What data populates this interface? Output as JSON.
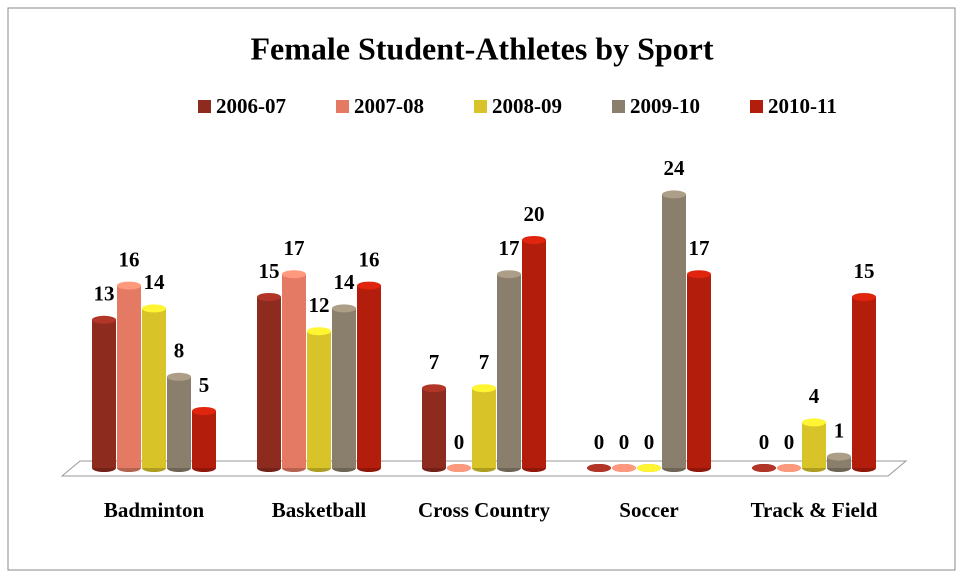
{
  "chart_data": {
    "type": "bar",
    "title": "Female Student-Athletes by Sport",
    "categories": [
      "Badminton",
      "Basketball",
      "Cross Country",
      "Soccer",
      "Track & Field"
    ],
    "series": [
      {
        "name": "2006-07",
        "color": "#8e2b1f",
        "values": [
          13,
          15,
          7,
          0,
          0
        ]
      },
      {
        "name": "2007-08",
        "color": "#e47a64",
        "values": [
          16,
          17,
          0,
          0,
          0
        ]
      },
      {
        "name": "2008-09",
        "color": "#d8c428",
        "values": [
          14,
          12,
          7,
          0,
          4
        ]
      },
      {
        "name": "2009-10",
        "color": "#8a7e6c",
        "values": [
          8,
          14,
          17,
          24,
          1
        ]
      },
      {
        "name": "2010-11",
        "color": "#b31d0b",
        "values": [
          5,
          16,
          20,
          17,
          15
        ]
      }
    ]
  }
}
